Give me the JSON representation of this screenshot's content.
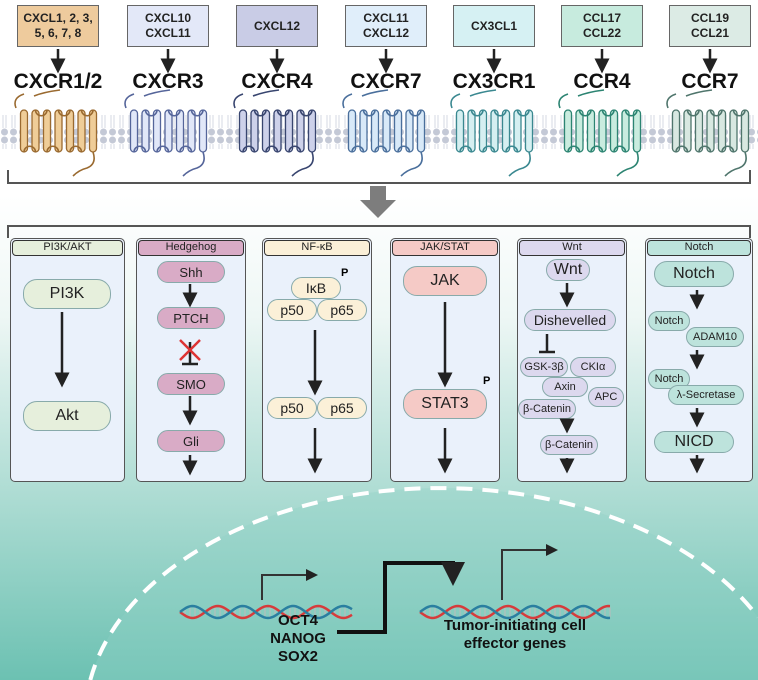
{
  "receptors": [
    {
      "ligand": "CXCL1, 2, 3,\n5, 6, 7, 8",
      "name": "CXCR1/2",
      "box": "#eecb9d",
      "fill": "#efcd98",
      "stroke": "#9a6a30"
    },
    {
      "ligand": "CXCL10\nCXCL11",
      "name": "CXCR3",
      "box": "#e3e8f8",
      "fill": "#e1e7f8",
      "stroke": "#55659a"
    },
    {
      "ligand": "CXCL12",
      "name": "CXCR4",
      "box": "#c9cce6",
      "fill": "#cdd1ea",
      "stroke": "#38456f"
    },
    {
      "ligand": "CXCL11\nCXCL12",
      "name": "CXCR7",
      "box": "#e0eefa",
      "fill": "#d8e9f8",
      "stroke": "#4a6f9c"
    },
    {
      "ligand": "CX3CL1",
      "name": "CX3CR1",
      "box": "#d6f1f3",
      "fill": "#d5eff1",
      "stroke": "#3a8890"
    },
    {
      "ligand": "CCL17\nCCL22",
      "name": "CCR4",
      "box": "#c7ebde",
      "fill": "#c9ecdf",
      "stroke": "#2c8472"
    },
    {
      "ligand": "CCL19\nCCL21",
      "name": "CCR7",
      "box": "#dcebe5",
      "fill": "#d8e8e1",
      "stroke": "#4f756c"
    }
  ],
  "pathways": {
    "pi3k": {
      "title": "PI3K/AKT",
      "color": "#e6efdc",
      "nodes": [
        "PI3K",
        "Akt"
      ]
    },
    "hedgehog": {
      "title": "Hedgehog",
      "color": "#d9abc6",
      "nodes": [
        "Shh",
        "PTCH",
        "SMO",
        "Gli"
      ]
    },
    "nfkb": {
      "title": "NF-κB",
      "color": "#fbf0d8",
      "nodes": [
        "IκB",
        "p50",
        "p65",
        "p50",
        "p65"
      ],
      "phospho": "P"
    },
    "jakstat": {
      "title": "JAK/STAT",
      "color": "#f5cac6",
      "nodes": [
        "JAK",
        "STAT3"
      ],
      "phospho": "P"
    },
    "wnt": {
      "title": "Wnt",
      "color": "#dcd8ee",
      "nodes": [
        "Wnt",
        "Dishevelled",
        "GSK-3β",
        "CKIα",
        "Axin",
        "APC",
        "β-Catenin",
        "β-Catenin"
      ]
    },
    "notch": {
      "title": "Notch",
      "color": "#bde3dc",
      "nodes": [
        "Notch",
        "Notch",
        "ADAM10",
        "Notch",
        "λ-Secretase",
        "NICD"
      ]
    }
  },
  "nucleus": {
    "tf_genes": [
      "OCT4",
      "NANOG",
      "SOX2"
    ],
    "target_genes": "Tumor-initiating cell\neffector genes"
  }
}
